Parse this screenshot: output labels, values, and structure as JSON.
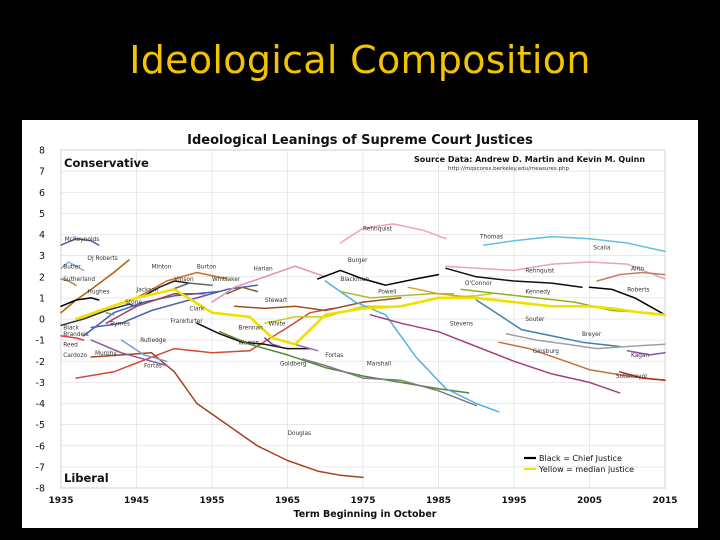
{
  "slide": {
    "title": "Ideological Composition"
  },
  "chart_data": {
    "type": "line",
    "title": "Ideological Leanings of Supreme Court Justices",
    "xlabel": "Term Beginning in October",
    "ylabel": "",
    "xlim": [
      1935,
      2015
    ],
    "ylim": [
      -8,
      8
    ],
    "x_ticks": [
      "1935",
      "1945",
      "1955",
      "1965",
      "1975",
      "1985",
      "1995",
      "2005",
      "2015"
    ],
    "y_ticks": [
      "-8",
      "-7",
      "-6",
      "-5",
      "-4",
      "-3",
      "-2",
      "-1",
      "0",
      "1",
      "2",
      "3",
      "4",
      "5",
      "6",
      "7",
      "8"
    ],
    "grid": true,
    "top_label": "Conservative",
    "bottom_label": "Liberal",
    "source_line1": "Source Data: Andrew D. Martin and Kevin M. Quinn",
    "source_line2": "http://mqscores.berkeley.edu/measures.php",
    "legend": {
      "placement": "bottom-right",
      "entries": [
        {
          "label": "Black = Chief Justice",
          "color": "#000000"
        },
        {
          "label": "Yellow = median justice",
          "color": "#f0e000"
        }
      ]
    },
    "series": [
      {
        "name": "McReynolds",
        "color": "#555a9a",
        "x": [
          1935,
          1937,
          1939,
          1940
        ],
        "y": [
          3.5,
          3.8,
          3.7,
          3.5
        ]
      },
      {
        "name": "Butler",
        "color": "#8fb0d8",
        "x": [
          1935,
          1936,
          1937,
          1938
        ],
        "y": [
          2.4,
          2.7,
          2.5,
          2.3
        ]
      },
      {
        "name": "OJ Roberts",
        "color": "#b06010",
        "x": [
          1935,
          1937,
          1939,
          1942,
          1944
        ],
        "y": [
          0.3,
          0.9,
          1.4,
          2.2,
          2.8
        ]
      },
      {
        "name": "Sutherland",
        "color": "#c08040",
        "x": [
          1935,
          1936,
          1937
        ],
        "y": [
          1.9,
          1.8,
          1.6
        ]
      },
      {
        "name": "Hughes",
        "color": "#000000",
        "x": [
          1935,
          1937,
          1939,
          1940
        ],
        "y": [
          0.6,
          0.9,
          1.0,
          0.9
        ]
      },
      {
        "name": "Stone",
        "color": "#333333",
        "x": [
          1935,
          1938,
          1941,
          1944,
          1945
        ],
        "y": [
          -0.3,
          0.0,
          0.4,
          0.7,
          0.6
        ]
      },
      {
        "name": "Brandeis",
        "color": "#d04040",
        "x": [
          1935,
          1937,
          1938
        ],
        "y": [
          -0.8,
          -0.9,
          -1.0
        ]
      },
      {
        "name": "Black",
        "color": "#d04a38",
        "x": [
          1937,
          1942,
          1950,
          1955,
          1960,
          1965,
          1968,
          1971
        ],
        "y": [
          -2.8,
          -2.5,
          -1.4,
          -1.6,
          -1.5,
          -0.4,
          0.3,
          0.5
        ]
      },
      {
        "name": "Reed",
        "color": "#4060c0",
        "x": [
          1938,
          1942,
          1946,
          1950,
          1956
        ],
        "y": [
          -0.8,
          0.3,
          0.8,
          1.1,
          1.3
        ]
      },
      {
        "name": "Frankfurter",
        "color": "#5060b0",
        "x": [
          1939,
          1943,
          1947,
          1952,
          1957,
          1961
        ],
        "y": [
          -0.4,
          -0.2,
          0.4,
          0.9,
          1.4,
          1.6
        ]
      },
      {
        "name": "Douglas",
        "color": "#a8401c",
        "x": [
          1939,
          1943,
          1947,
          1950,
          1953,
          1957,
          1961,
          1965,
          1969,
          1972,
          1975
        ],
        "y": [
          -1.8,
          -1.7,
          -1.6,
          -2.5,
          -4.0,
          -5.0,
          -6.0,
          -6.7,
          -7.2,
          -7.4,
          -7.5
        ]
      },
      {
        "name": "Murphy",
        "color": "#8a5aa0",
        "x": [
          1939,
          1943,
          1947,
          1949
        ],
        "y": [
          -1.0,
          -1.6,
          -2.0,
          -2.2
        ]
      },
      {
        "name": "Byrnes",
        "color": "#888888",
        "x": [
          1941,
          1942
        ],
        "y": [
          0.3,
          0.2
        ]
      },
      {
        "name": "Jackson",
        "color": "#a04060",
        "x": [
          1941,
          1945,
          1950,
          1954
        ],
        "y": [
          -0.2,
          0.6,
          1.2,
          1.2
        ]
      },
      {
        "name": "Rutledge",
        "color": "#70a0d0",
        "x": [
          1943,
          1946,
          1949
        ],
        "y": [
          -1.0,
          -1.7,
          -2.0
        ]
      },
      {
        "name": "Burton",
        "color": "#d07020",
        "x": [
          1945,
          1949,
          1953,
          1957
        ],
        "y": [
          1.0,
          1.8,
          2.2,
          1.9
        ]
      },
      {
        "name": "Vinson",
        "color": "#222222",
        "x": [
          1946,
          1948,
          1950,
          1952
        ],
        "y": [
          1.1,
          1.5,
          1.8,
          1.7
        ]
      },
      {
        "name": "Minton",
        "color": "#666666",
        "x": [
          1949,
          1952,
          1955
        ],
        "y": [
          1.3,
          1.7,
          1.6
        ]
      },
      {
        "name": "Warren",
        "color": "#111111",
        "x": [
          1953,
          1956,
          1959,
          1962,
          1965,
          1968
        ],
        "y": [
          -0.2,
          -0.7,
          -1.1,
          -1.2,
          -1.4,
          -1.4
        ]
      },
      {
        "name": "Harlan",
        "color": "#e090b0",
        "x": [
          1955,
          1958,
          1962,
          1966,
          1970
        ],
        "y": [
          0.8,
          1.5,
          2.0,
          2.5,
          2.0
        ]
      },
      {
        "name": "Brennan",
        "color": "#558a30",
        "x": [
          1956,
          1960,
          1965,
          1970,
          1975,
          1980,
          1985,
          1989
        ],
        "y": [
          -0.6,
          -1.2,
          -1.7,
          -2.3,
          -2.7,
          -3.0,
          -3.3,
          -3.5
        ]
      },
      {
        "name": "Whittaker",
        "color": "#806030",
        "x": [
          1957,
          1959,
          1961
        ],
        "y": [
          1.2,
          1.5,
          1.3
        ]
      },
      {
        "name": "Stewart",
        "color": "#a05020",
        "x": [
          1958,
          1962,
          1966,
          1970,
          1975,
          1980
        ],
        "y": [
          0.6,
          0.5,
          0.6,
          0.4,
          0.8,
          1.0
        ]
      },
      {
        "name": "White",
        "color": "#c0d020",
        "x": [
          1962,
          1966,
          1970,
          1975,
          1980,
          1985,
          1990,
          1992
        ],
        "y": [
          -0.2,
          0.1,
          0.1,
          0.6,
          0.6,
          1.0,
          1.1,
          1.2
        ]
      },
      {
        "name": "Goldberg",
        "color": "#7040a0",
        "x": [
          1962,
          1963,
          1964
        ],
        "y": [
          -0.9,
          -1.2,
          -1.3
        ]
      },
      {
        "name": "Fortas",
        "color": "#9a6ac0",
        "x": [
          1965,
          1967,
          1969
        ],
        "y": [
          -1.1,
          -1.3,
          -1.5
        ]
      },
      {
        "name": "Marshall",
        "color": "#7a7a8a",
        "x": [
          1967,
          1970,
          1975,
          1980,
          1985,
          1990
        ],
        "y": [
          -1.9,
          -2.2,
          -2.8,
          -2.9,
          -3.4,
          -4.1
        ]
      },
      {
        "name": "Burger",
        "color": "#000000",
        "x": [
          1969,
          1972,
          1975,
          1978,
          1982,
          1985
        ],
        "y": [
          1.9,
          2.3,
          1.9,
          1.6,
          1.9,
          2.1
        ]
      },
      {
        "name": "Blackmun",
        "color": "#50b0e0",
        "x": [
          1970,
          1974,
          1978,
          1982,
          1986,
          1990,
          1993
        ],
        "y": [
          1.8,
          0.8,
          0.2,
          -1.8,
          -3.3,
          -4.0,
          -4.4
        ]
      },
      {
        "name": "Powell",
        "color": "#a0c040",
        "x": [
          1972,
          1976,
          1980,
          1984,
          1987
        ],
        "y": [
          1.3,
          1.0,
          1.1,
          1.2,
          1.2
        ]
      },
      {
        "name": "Rehnquist",
        "color": "#f0a0c0",
        "x": [
          1972,
          1975,
          1979,
          1983,
          1986
        ],
        "y": [
          3.6,
          4.3,
          4.5,
          4.2,
          3.8
        ]
      },
      {
        "name": "Stevens",
        "color": "#a04080",
        "x": [
          1976,
          1980,
          1985,
          1990,
          1995,
          2000,
          2005,
          2009
        ],
        "y": [
          0.2,
          -0.2,
          -0.6,
          -1.3,
          -2.0,
          -2.6,
          -3.0,
          -3.5
        ]
      },
      {
        "name": "O'Connor",
        "color": "#e0a020",
        "x": [
          1981,
          1985,
          1990,
          1995,
          2000,
          2005
        ],
        "y": [
          1.5,
          1.2,
          1.0,
          0.8,
          0.6,
          0.6
        ]
      },
      {
        "name": "Rehnquist (CJ)",
        "color": "#111111",
        "x": [
          1986,
          1990,
          1995,
          2000,
          2004
        ],
        "y": [
          2.4,
          2.0,
          1.8,
          1.7,
          1.5
        ]
      },
      {
        "name": "Scalia",
        "color": "#e8a0c8",
        "x": [
          1986,
          1990,
          1995,
          2000,
          2005,
          2010,
          2015
        ],
        "y": [
          2.5,
          2.4,
          2.3,
          2.6,
          2.7,
          2.6,
          1.9
        ]
      },
      {
        "name": "Kennedy",
        "color": "#90b020",
        "x": [
          1988,
          1993,
          1998,
          2003,
          2008,
          2013,
          2015
        ],
        "y": [
          1.4,
          1.2,
          1.0,
          0.8,
          0.4,
          0.3,
          0.2
        ]
      },
      {
        "name": "Souter",
        "color": "#4080b0",
        "x": [
          1990,
          1993,
          1996,
          2000,
          2004,
          2009
        ],
        "y": [
          0.9,
          0.2,
          -0.5,
          -0.8,
          -1.1,
          -1.3
        ]
      },
      {
        "name": "Thomas",
        "color": "#60c0e0",
        "x": [
          1991,
          1995,
          2000,
          2005,
          2010,
          2015
        ],
        "y": [
          3.5,
          3.7,
          3.9,
          3.8,
          3.6,
          3.2
        ]
      },
      {
        "name": "Ginsburg",
        "color": "#c07040",
        "x": [
          1993,
          1997,
          2001,
          2005,
          2010,
          2015
        ],
        "y": [
          -1.1,
          -1.4,
          -1.9,
          -2.4,
          -2.7,
          -2.9
        ]
      },
      {
        "name": "Breyer",
        "color": "#a0a0a0",
        "x": [
          1994,
          1998,
          2002,
          2006,
          2010,
          2015
        ],
        "y": [
          -0.7,
          -1.0,
          -1.2,
          -1.4,
          -1.3,
          -1.2
        ]
      },
      {
        "name": "Roberts",
        "color": "#000000",
        "x": [
          2005,
          2008,
          2011,
          2015
        ],
        "y": [
          1.5,
          1.4,
          1.0,
          0.2
        ]
      },
      {
        "name": "Alito",
        "color": "#c08060",
        "x": [
          2006,
          2009,
          2012,
          2015
        ],
        "y": [
          1.8,
          2.1,
          2.2,
          2.1
        ]
      },
      {
        "name": "Sotomayor",
        "color": "#b03020",
        "x": [
          2009,
          2012,
          2015
        ],
        "y": [
          -2.5,
          -2.8,
          -2.9
        ]
      },
      {
        "name": "Kagan",
        "color": "#9050b0",
        "x": [
          2010,
          2013,
          2015
        ],
        "y": [
          -1.5,
          -1.7,
          -1.6
        ]
      },
      {
        "name": "Median",
        "color": "#f0e000",
        "x": [
          1937,
          1941,
          1945,
          1950,
          1955,
          1960,
          1963,
          1966,
          1970,
          1975,
          1980,
          1985,
          1990,
          1995,
          2000,
          2005,
          2008,
          2012,
          2015
        ],
        "y": [
          0.0,
          0.5,
          1.0,
          1.4,
          0.3,
          0.1,
          -0.9,
          -1.2,
          0.2,
          0.5,
          0.6,
          1.0,
          1.0,
          0.8,
          0.6,
          0.6,
          0.5,
          0.3,
          0.2
        ]
      }
    ],
    "annotations": [
      {
        "text": "McReynolds",
        "x": 1935.5,
        "y": 3.7
      },
      {
        "text": "Butler",
        "x": 1935.3,
        "y": 2.4
      },
      {
        "text": "OJ Roberts",
        "x": 1938.5,
        "y": 2.8
      },
      {
        "text": "Sutherland",
        "x": 1935.3,
        "y": 1.8
      },
      {
        "text": "Hughes",
        "x": 1938.5,
        "y": 1.2
      },
      {
        "text": "Stone",
        "x": 1943.5,
        "y": 0.7
      },
      {
        "text": "Brandeis",
        "x": 1935.3,
        "y": -0.8
      },
      {
        "text": "Black",
        "x": 1935.3,
        "y": -0.5
      },
      {
        "text": "Reed",
        "x": 1935.3,
        "y": -1.3
      },
      {
        "text": "Cardozo",
        "x": 1935.3,
        "y": -1.8
      },
      {
        "text": "Murphy",
        "x": 1939.5,
        "y": -1.7
      },
      {
        "text": "Byrnes",
        "x": 1941.5,
        "y": -0.3
      },
      {
        "text": "Jackson",
        "x": 1945.0,
        "y": 1.3
      },
      {
        "text": "Minton",
        "x": 1947.0,
        "y": 2.4
      },
      {
        "text": "Burton",
        "x": 1953.0,
        "y": 2.4
      },
      {
        "text": "Vinson",
        "x": 1950.0,
        "y": 1.8
      },
      {
        "text": "Whittaker",
        "x": 1955.0,
        "y": 1.8
      },
      {
        "text": "Harlan",
        "x": 1960.5,
        "y": 2.3
      },
      {
        "text": "Clark",
        "x": 1952.0,
        "y": 0.4
      },
      {
        "text": "Frankfurter",
        "x": 1949.5,
        "y": -0.2
      },
      {
        "text": "Rutledge",
        "x": 1945.5,
        "y": -1.1
      },
      {
        "text": "Fortas",
        "x": 1946.0,
        "y": -2.3
      },
      {
        "text": "Brennan",
        "x": 1958.5,
        "y": -0.5
      },
      {
        "text": "Warren",
        "x": 1958.5,
        "y": -1.2
      },
      {
        "text": "White",
        "x": 1962.5,
        "y": -0.3
      },
      {
        "text": "Stewart",
        "x": 1962.0,
        "y": 0.8
      },
      {
        "text": "Goldberg",
        "x": 1964.0,
        "y": -2.2
      },
      {
        "text": "Fortas",
        "x": 1970.0,
        "y": -1.8
      },
      {
        "text": "Marshall",
        "x": 1975.5,
        "y": -2.2
      },
      {
        "text": "Burger",
        "x": 1973.0,
        "y": 2.7
      },
      {
        "text": "Blackmun",
        "x": 1972.0,
        "y": 1.8
      },
      {
        "text": "Powell",
        "x": 1977.0,
        "y": 1.2
      },
      {
        "text": "Rehnquist",
        "x": 1975.0,
        "y": 4.2
      },
      {
        "text": "Stevens",
        "x": 1986.5,
        "y": -0.3
      },
      {
        "text": "O'Connor",
        "x": 1988.5,
        "y": 1.6
      },
      {
        "text": "Rehnquist",
        "x": 1996.5,
        "y": 2.2
      },
      {
        "text": "Kennedy",
        "x": 1996.5,
        "y": 1.2
      },
      {
        "text": "Souter",
        "x": 1996.5,
        "y": -0.1
      },
      {
        "text": "Thomas",
        "x": 1990.5,
        "y": 3.8
      },
      {
        "text": "Scalia",
        "x": 2005.5,
        "y": 3.3
      },
      {
        "text": "Ginsburg",
        "x": 1997.5,
        "y": -1.6
      },
      {
        "text": "Breyer",
        "x": 2004.0,
        "y": -0.8
      },
      {
        "text": "Alito",
        "x": 2010.5,
        "y": 2.3
      },
      {
        "text": "Roberts",
        "x": 2010.0,
        "y": 1.3
      },
      {
        "text": "Kagan",
        "x": 2010.5,
        "y": -1.8
      },
      {
        "text": "Sotomayor",
        "x": 2008.5,
        "y": -2.8
      },
      {
        "text": "Douglas",
        "x": 1965.0,
        "y": -5.5
      }
    ]
  }
}
